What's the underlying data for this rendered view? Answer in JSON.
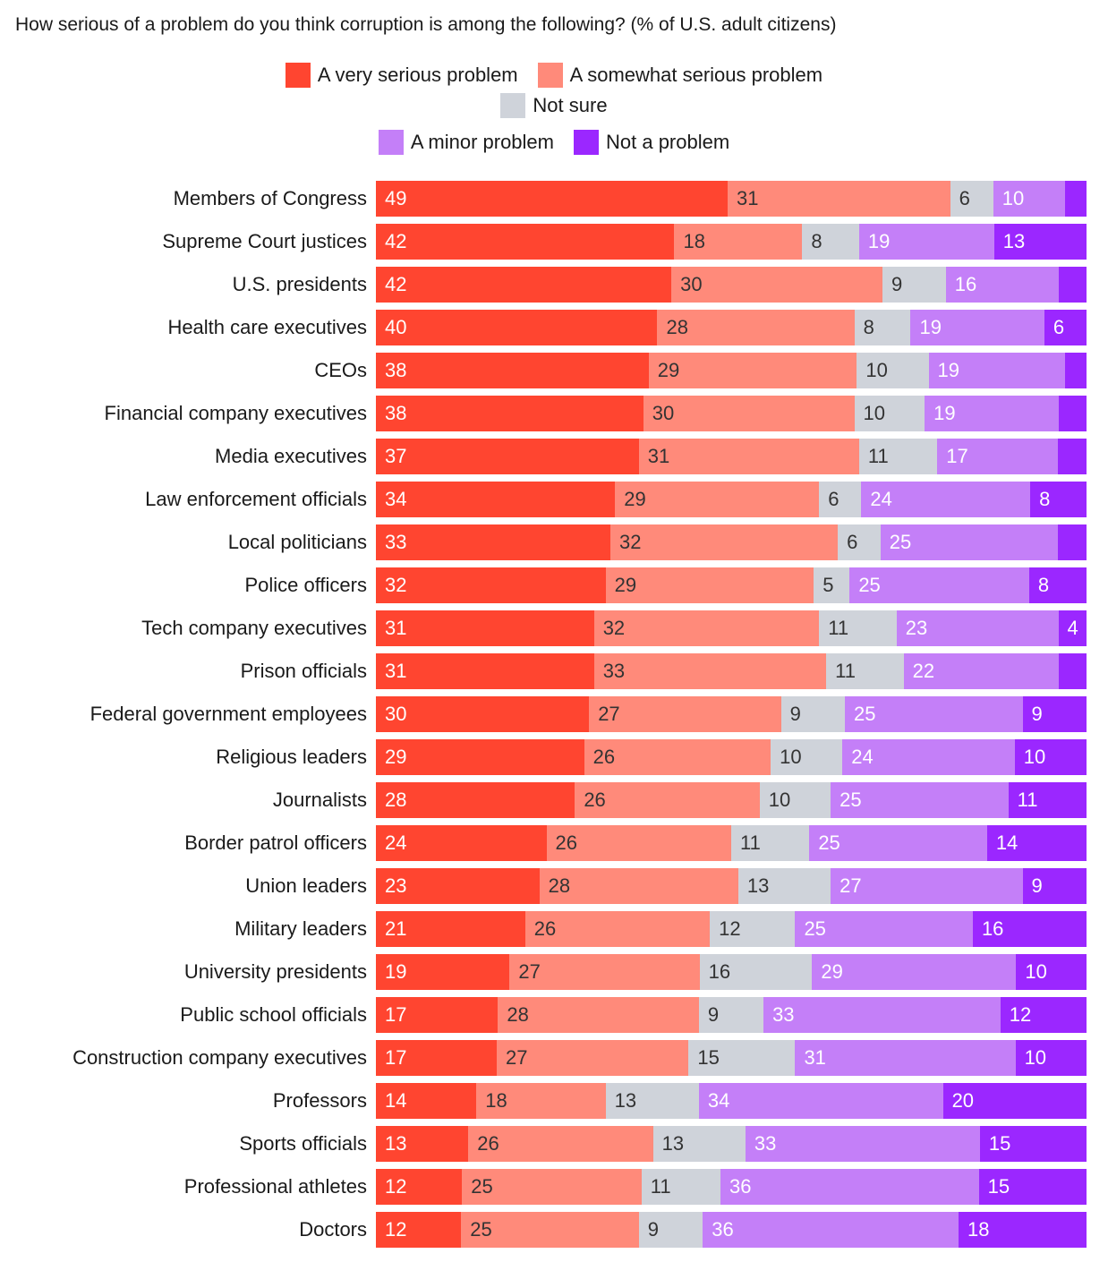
{
  "chart_data": {
    "type": "bar",
    "orientation": "horizontal-stacked-100",
    "title": "How serious of a problem do you think corruption is among the following? (% of U.S. adult citizens)",
    "xlabel": "",
    "ylabel": "",
    "legend_placement": "top-center",
    "series": [
      {
        "name": "A very serious problem",
        "color": "#ff4530",
        "label_color": "#ffffff",
        "values": [
          49,
          42,
          42,
          40,
          38,
          38,
          37,
          34,
          33,
          32,
          31,
          31,
          30,
          29,
          28,
          24,
          23,
          21,
          19,
          17,
          17,
          14,
          13,
          12,
          12
        ]
      },
      {
        "name": "A somewhat serious problem",
        "color": "#ff8a7a",
        "label_color": "#333333",
        "values": [
          31,
          18,
          30,
          28,
          29,
          30,
          31,
          29,
          32,
          29,
          32,
          33,
          27,
          26,
          26,
          26,
          28,
          26,
          27,
          28,
          27,
          18,
          26,
          25,
          25
        ]
      },
      {
        "name": "Not sure",
        "color": "#cfd3da",
        "label_color": "#333333",
        "values": [
          6,
          8,
          9,
          8,
          10,
          10,
          11,
          6,
          6,
          5,
          11,
          11,
          9,
          10,
          10,
          11,
          13,
          12,
          16,
          9,
          15,
          13,
          13,
          11,
          9
        ]
      },
      {
        "name": "A minor problem",
        "color": "#c47ff8",
        "label_color": "#ffffff",
        "values": [
          10,
          19,
          16,
          19,
          19,
          19,
          17,
          24,
          25,
          25,
          23,
          22,
          25,
          24,
          25,
          25,
          27,
          25,
          29,
          33,
          31,
          34,
          33,
          36,
          36
        ]
      },
      {
        "name": "Not a problem",
        "color": "#9b27ff",
        "label_color": "#ffffff",
        "values": [
          3,
          13,
          4,
          6,
          3,
          4,
          4,
          8,
          4,
          8,
          4,
          4,
          9,
          10,
          11,
          14,
          9,
          16,
          10,
          12,
          10,
          20,
          15,
          15,
          18
        ],
        "labels_shown": [
          false,
          true,
          false,
          true,
          false,
          false,
          false,
          true,
          false,
          true,
          true,
          false,
          true,
          true,
          true,
          true,
          true,
          true,
          true,
          true,
          true,
          true,
          true,
          true,
          true
        ]
      }
    ],
    "categories": [
      "Members of Congress",
      "Supreme Court justices",
      "U.S. presidents",
      "Health care executives",
      "CEOs",
      "Financial company executives",
      "Media executives",
      "Law enforcement officials",
      "Local politicians",
      "Police officers",
      "Tech company executives",
      "Prison officials",
      "Federal government employees",
      "Religious leaders",
      "Journalists",
      "Border patrol officers",
      "Union leaders",
      "Military leaders",
      "University presidents",
      "Public school officials",
      "Construction company executives",
      "Professors",
      "Sports officials",
      "Professional athletes",
      "Doctors"
    ]
  }
}
